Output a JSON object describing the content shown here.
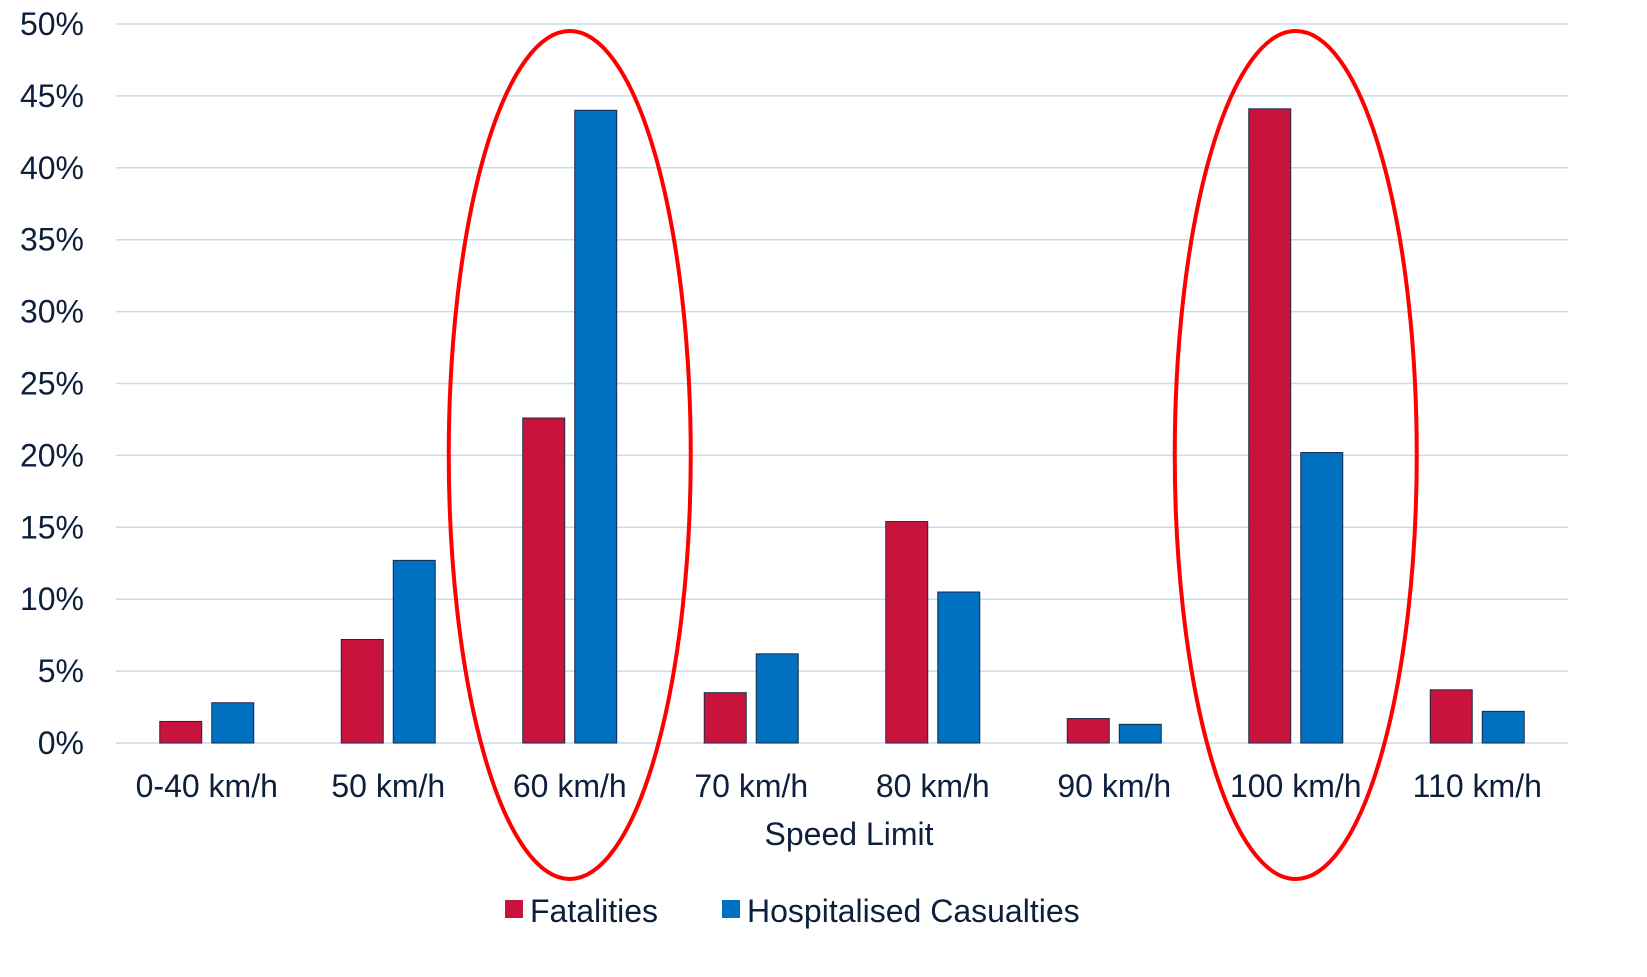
{
  "chart_data": {
    "type": "bar",
    "title": "",
    "xlabel": "Speed Limit",
    "ylabel": "",
    "ylim": [
      0,
      50
    ],
    "y_ticks": [
      "0%",
      "5%",
      "10%",
      "15%",
      "20%",
      "25%",
      "30%",
      "35%",
      "40%",
      "45%",
      "50%"
    ],
    "y_tick_values": [
      0,
      5,
      10,
      15,
      20,
      25,
      30,
      35,
      40,
      45,
      50
    ],
    "grid": true,
    "legend_position": "bottom",
    "categories": [
      "0-40 km/h",
      "50 km/h",
      "60 km/h",
      "70 km/h",
      "80 km/h",
      "90 km/h",
      "100 km/h",
      "110 km/h"
    ],
    "series": [
      {
        "name": "Fatalities",
        "color": "#c8143c",
        "values": [
          1.5,
          7.2,
          22.6,
          3.5,
          15.4,
          1.7,
          44.1,
          3.7
        ]
      },
      {
        "name": "Hospitalised Casualties",
        "color": "#0070c0",
        "values": [
          2.8,
          12.7,
          44.0,
          6.2,
          10.5,
          1.3,
          20.2,
          2.2
        ]
      }
    ],
    "highlighted_categories": [
      "60 km/h",
      "100 km/h"
    ],
    "colors": {
      "highlight": "#ff0000",
      "gridline": "#c5dcef",
      "bar_outline": "#1a2b4a",
      "text": "#0d1f3c"
    }
  }
}
